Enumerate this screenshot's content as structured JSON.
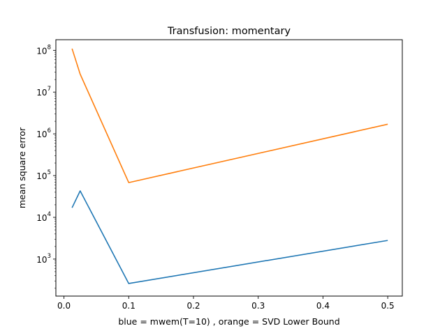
{
  "chart_data": {
    "type": "line",
    "title": "Transfusion: momentary",
    "xlabel": "blue = mwem(T=10) , orange = SVD Lower Bound",
    "ylabel": "mean square error",
    "yscale": "log",
    "xlim": [
      -0.0125,
      0.5225
    ],
    "ylim": [
      130,
      180000000
    ],
    "x_ticks": [
      {
        "value": 0.0,
        "label": "0.0"
      },
      {
        "value": 0.1,
        "label": "0.1"
      },
      {
        "value": 0.2,
        "label": "0.2"
      },
      {
        "value": 0.3,
        "label": "0.3"
      },
      {
        "value": 0.4,
        "label": "0.4"
      },
      {
        "value": 0.5,
        "label": "0.5"
      }
    ],
    "y_ticks": [
      {
        "value": 1000,
        "base": "10",
        "exp": "3"
      },
      {
        "value": 10000,
        "base": "10",
        "exp": "4"
      },
      {
        "value": 100000,
        "base": "10",
        "exp": "5"
      },
      {
        "value": 1000000,
        "base": "10",
        "exp": "6"
      },
      {
        "value": 10000000,
        "base": "10",
        "exp": "7"
      },
      {
        "value": 100000000,
        "base": "10",
        "exp": "8"
      }
    ],
    "grid": false,
    "legend": "none",
    "series": [
      {
        "color": "#1f77b4",
        "x": [
          0.0125,
          0.025,
          0.1,
          0.5
        ],
        "y": [
          17000,
          43000,
          260,
          2800
        ]
      },
      {
        "color": "#ff7f0e",
        "x": [
          0.0125,
          0.025,
          0.1,
          0.5
        ],
        "y": [
          110000000,
          27000000,
          68000,
          1700000
        ]
      }
    ]
  }
}
